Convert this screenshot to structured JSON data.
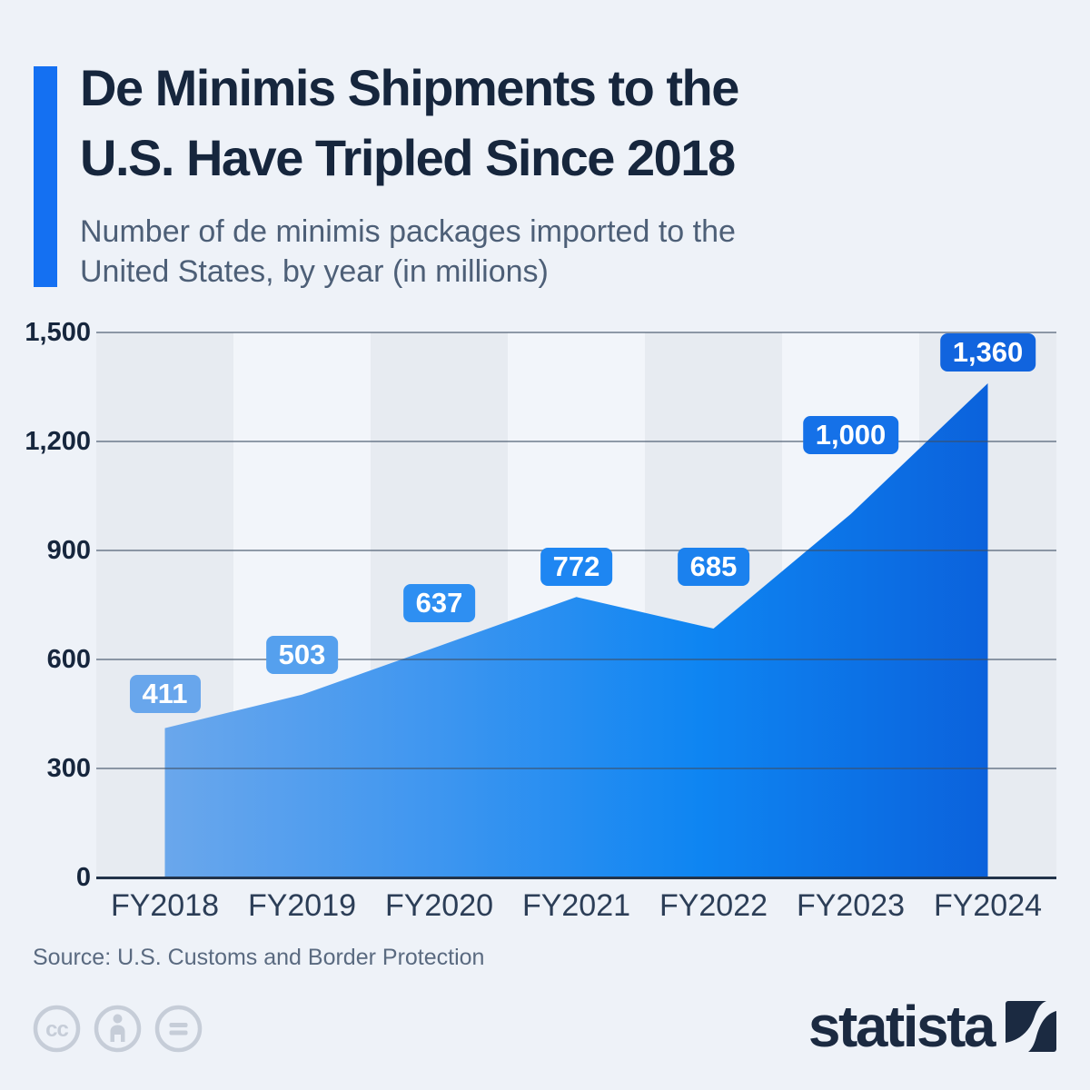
{
  "header": {
    "title_line1": "De Minimis Shipments to the",
    "title_line2": "U.S. Have Tripled Since 2018",
    "subtitle_line1": "Number of de minimis packages imported to the",
    "subtitle_line2": "United States, by year (in millions)"
  },
  "chart_data": {
    "type": "area",
    "title": "De Minimis Shipments to the U.S. Have Tripled Since 2018",
    "subtitle": "Number of de minimis packages imported to the United States, by year (in millions)",
    "categories": [
      "FY2018",
      "FY2019",
      "FY2020",
      "FY2021",
      "FY2022",
      "FY2023",
      "FY2024"
    ],
    "values": [
      411,
      503,
      637,
      772,
      685,
      1000,
      1360
    ],
    "value_labels": [
      "411",
      "503",
      "637",
      "772",
      "685",
      "1,000",
      "1,360"
    ],
    "xlabel": "",
    "ylabel": "",
    "ylim": [
      0,
      1500
    ],
    "yticks": [
      0,
      300,
      600,
      900,
      1200,
      1500
    ],
    "ytick_labels": [
      "0",
      "300",
      "600",
      "900",
      "1,200",
      "1,500"
    ],
    "grid": "horizontal",
    "legend": "none",
    "label_colors": [
      "#68a6ec",
      "#55a0ee",
      "#2e8ff2",
      "#1e86f2",
      "#1b81ee",
      "#1571e8",
      "#1164de"
    ],
    "label_offsets": [
      17,
      23,
      26,
      12,
      47,
      66,
      13
    ],
    "area_gradient": [
      "#6aa7ec",
      "#3e96f0",
      "#0e85f2",
      "#0b62dc"
    ],
    "band_colors": [
      "#e7ebf1",
      "#f2f5fa"
    ]
  },
  "footer": {
    "source": "Source: U.S. Customs and Border Protection",
    "license_icons": [
      "cc-icon",
      "attribution-person-icon",
      "no-derivatives-icon"
    ],
    "brand": "statista"
  },
  "colors": {
    "background": "#eef2f8",
    "accent_bar": "#1470f2",
    "title": "#16263d",
    "subtitle": "#4d5f77",
    "axis": "#22334a",
    "logo_navy": "#1b2a41"
  }
}
